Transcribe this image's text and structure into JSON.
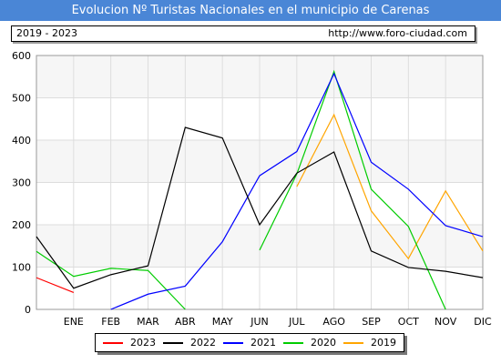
{
  "header": {
    "title": "Evolucion Nº Turistas Nacionales en el municipio de Carenas",
    "period": "2019 - 2023",
    "url": "http://www.foro-ciudad.com"
  },
  "colors": {
    "title_bg": "#4a86d6",
    "grid": "#dddddd",
    "band": "#f6f6f6"
  },
  "chart_data": {
    "type": "line",
    "title": "Evolucion Nº Turistas Nacionales en el municipio de Carenas",
    "categories": [
      "",
      "ENE",
      "FEB",
      "MAR",
      "ABR",
      "MAY",
      "JUN",
      "JUL",
      "AGO",
      "SEP",
      "OCT",
      "NOV",
      "DIC"
    ],
    "ylim": [
      0,
      600
    ],
    "yticks": [
      0,
      100,
      200,
      300,
      400,
      500,
      600
    ],
    "grid": true,
    "legend_position": "bottom",
    "series": [
      {
        "name": "2023",
        "color": "#ff0000",
        "values": [
          75,
          40,
          null,
          null,
          null,
          null,
          null,
          null,
          null,
          null,
          null,
          null,
          null
        ]
      },
      {
        "name": "2022",
        "color": "#000000",
        "values": [
          172,
          50,
          82,
          103,
          430,
          405,
          200,
          322,
          372,
          138,
          99,
          90,
          75
        ]
      },
      {
        "name": "2021",
        "color": "#0000ff",
        "values": [
          null,
          null,
          0,
          36,
          55,
          160,
          316,
          373,
          557,
          348,
          284,
          198,
          172
        ]
      },
      {
        "name": "2020",
        "color": "#00cc00",
        "values": [
          137,
          78,
          97,
          92,
          0,
          null,
          140,
          320,
          562,
          284,
          196,
          0,
          null
        ]
      },
      {
        "name": "2019",
        "color": "#ffa500",
        "values": [
          null,
          null,
          null,
          null,
          null,
          null,
          null,
          290,
          460,
          233,
          120,
          280,
          138
        ]
      }
    ]
  }
}
